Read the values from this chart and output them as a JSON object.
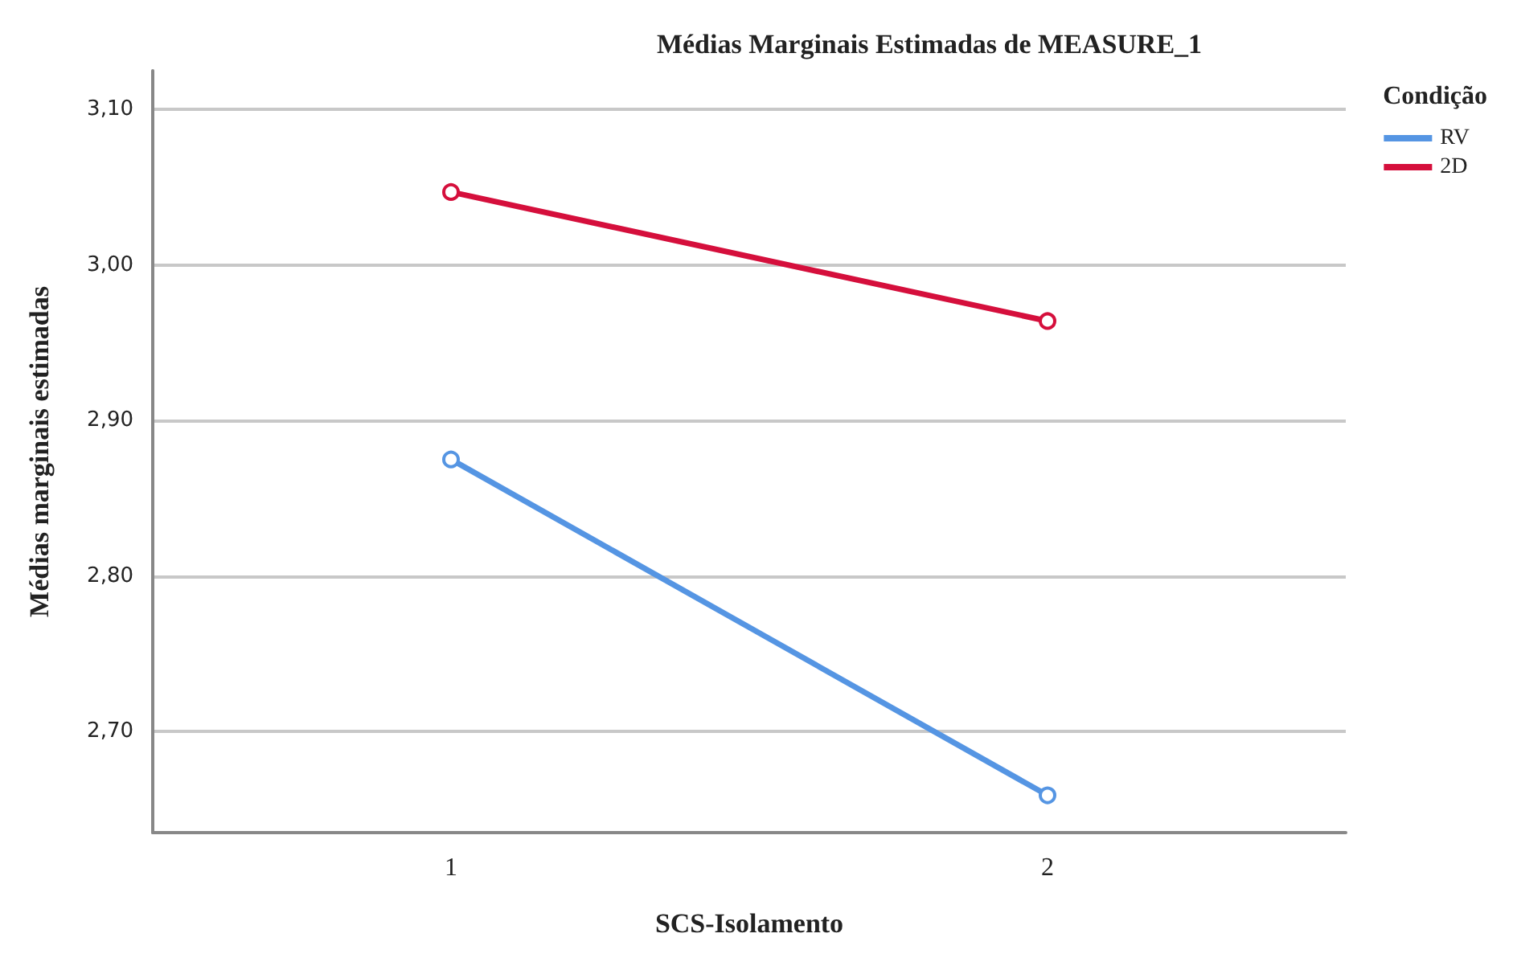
{
  "chart_data": {
    "type": "line",
    "title": "Médias Marginais Estimadas de MEASURE_1",
    "xlabel": "SCS-Isolamento",
    "ylabel": "Médias marginais estimadas",
    "legend_title": "Condição",
    "categories": [
      "1",
      "2"
    ],
    "series": [
      {
        "name": "RV",
        "color": "#5595e3",
        "values": [
          2.875,
          2.659
        ]
      },
      {
        "name": "2D",
        "color": "#d50f3c",
        "values": [
          3.047,
          2.964
        ]
      }
    ],
    "ylim": [
      2.635,
      3.125
    ],
    "yticks": [
      {
        "value": 2.7,
        "label": "2,70"
      },
      {
        "value": 2.8,
        "label": "2,80"
      },
      {
        "value": 2.9,
        "label": "2,90"
      },
      {
        "value": 3.0,
        "label": "3,00"
      },
      {
        "value": 3.1,
        "label": "3,10"
      }
    ],
    "grid": "y",
    "legend": "top right",
    "marker": "circle",
    "line_style": "solid"
  }
}
